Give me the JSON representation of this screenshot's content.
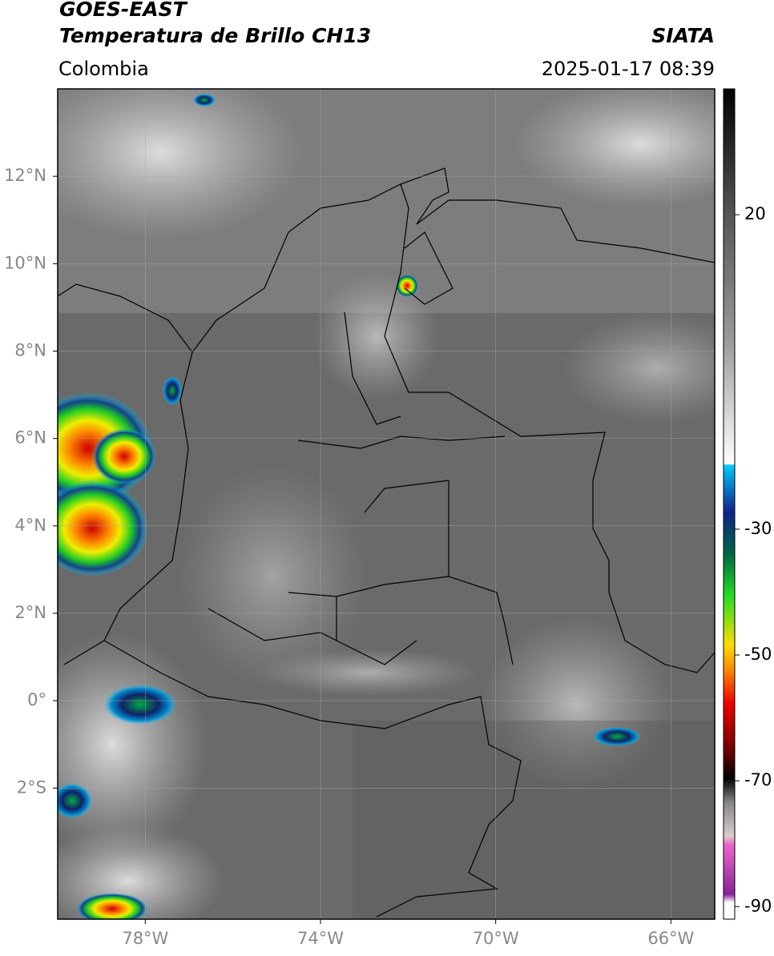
{
  "header": {
    "title": "GOES-EAST",
    "subtitle": "Temperatura de Brillo CH13",
    "source": "SIATA",
    "region": "Colombia",
    "datetime": "2025-01-17 08:39"
  },
  "map": {
    "xlim": [
      -80,
      -65
    ],
    "ylim": [
      -5,
      14
    ],
    "xticks": [
      {
        "value": -78,
        "label": "78°W"
      },
      {
        "value": -74,
        "label": "74°W"
      },
      {
        "value": -70,
        "label": "70°W"
      },
      {
        "value": -66,
        "label": "66°W"
      }
    ],
    "yticks": [
      {
        "value": 12,
        "label": "12°N"
      },
      {
        "value": 10,
        "label": "10°N"
      },
      {
        "value": 8,
        "label": "8°N"
      },
      {
        "value": 6,
        "label": "6°N"
      },
      {
        "value": 4,
        "label": "4°N"
      },
      {
        "value": 2,
        "label": "2°N"
      },
      {
        "value": 0,
        "label": "0°"
      },
      {
        "value": -2,
        "label": "2°S"
      }
    ]
  },
  "colorbar": {
    "lim": [
      -92,
      40
    ],
    "ticks": [
      20,
      -30,
      -50,
      -70,
      -90
    ]
  }
}
